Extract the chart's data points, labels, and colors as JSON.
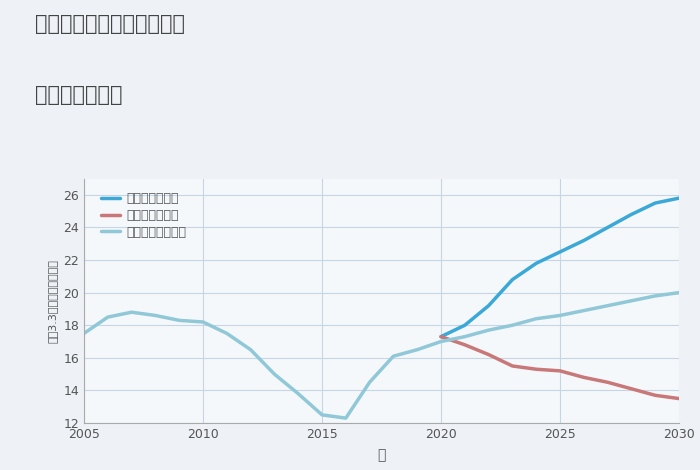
{
  "title_line1": "兵庫県丹波市市島町酒梨の",
  "title_line2": "土地の価格推移",
  "xlabel": "年",
  "ylabel": "坪（3.3㎡）単価（万円）",
  "background_color": "#eef2f7",
  "plot_bg_color": "#f5f8fb",
  "grid_color": "#c5d5e5",
  "ylim": [
    12,
    27
  ],
  "yticks": [
    12,
    14,
    16,
    18,
    20,
    22,
    24,
    26
  ],
  "xlim": [
    2005,
    2030
  ],
  "xticks": [
    2005,
    2010,
    2015,
    2020,
    2025,
    2030
  ],
  "good_scenario": {
    "label": "グッドシナリオ",
    "color": "#3ba8d8",
    "linewidth": 2.5,
    "x": [
      2020,
      2021,
      2022,
      2023,
      2024,
      2025,
      2026,
      2027,
      2028,
      2029,
      2030
    ],
    "y": [
      17.3,
      18.0,
      19.2,
      20.8,
      21.8,
      22.5,
      23.2,
      24.0,
      24.8,
      25.5,
      25.8
    ]
  },
  "bad_scenario": {
    "label": "バッドシナリオ",
    "color": "#c87878",
    "linewidth": 2.5,
    "x": [
      2020,
      2021,
      2022,
      2023,
      2024,
      2025,
      2026,
      2027,
      2028,
      2029,
      2030
    ],
    "y": [
      17.3,
      16.8,
      16.2,
      15.5,
      15.3,
      15.2,
      14.8,
      14.5,
      14.1,
      13.7,
      13.5
    ]
  },
  "normal_scenario": {
    "label": "ノーマルシナリオ",
    "color": "#90c8d8",
    "linewidth": 2.5,
    "x": [
      2005,
      2006,
      2007,
      2008,
      2009,
      2010,
      2011,
      2012,
      2013,
      2014,
      2015,
      2016,
      2017,
      2018,
      2019,
      2020,
      2021,
      2022,
      2023,
      2024,
      2025,
      2026,
      2027,
      2028,
      2029,
      2030
    ],
    "y": [
      17.5,
      18.5,
      18.8,
      18.6,
      18.3,
      18.2,
      17.5,
      16.5,
      15.0,
      13.8,
      12.5,
      12.3,
      14.5,
      16.1,
      16.5,
      17.0,
      17.3,
      17.7,
      18.0,
      18.4,
      18.6,
      18.9,
      19.2,
      19.5,
      19.8,
      20.0
    ]
  }
}
